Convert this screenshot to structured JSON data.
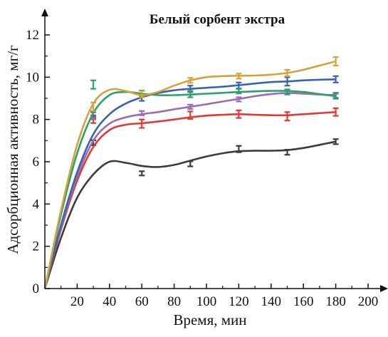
{
  "chart_data": {
    "type": "line",
    "title": "Белый сорбент экстра",
    "xlabel": "Время, мин",
    "ylabel": "Адсорбционная активность, мг/г",
    "xlim": [
      0,
      200
    ],
    "ylim": [
      0,
      12
    ],
    "x_ticks": [
      20,
      40,
      60,
      80,
      100,
      120,
      140,
      160,
      180,
      200
    ],
    "x_tick_labels": [
      "20",
      "40",
      "60",
      "80",
      "100",
      "120",
      "140",
      "160",
      "180",
      "200"
    ],
    "y_ticks": [
      0,
      2,
      4,
      6,
      8,
      10,
      12
    ],
    "y_tick_labels": [
      "0",
      "2",
      "4",
      "6",
      "8",
      "10",
      "12"
    ],
    "grid": false,
    "legend": "none",
    "series": [
      {
        "color": "#3c3c3c",
        "points": [
          [
            0,
            0
          ],
          [
            30,
            6.9
          ],
          [
            60,
            5.45
          ],
          [
            90,
            5.9
          ],
          [
            120,
            6.6
          ],
          [
            150,
            6.45
          ],
          [
            180,
            6.95
          ]
        ],
        "errors": [
          0.12,
          0.1,
          0.12,
          0.15,
          0.12,
          0.12
        ],
        "curve": [
          [
            0,
            0
          ],
          [
            10,
            2.4
          ],
          [
            20,
            4.3
          ],
          [
            30,
            5.4
          ],
          [
            40,
            6.0
          ],
          [
            50,
            5.95
          ],
          [
            60,
            5.8
          ],
          [
            70,
            5.75
          ],
          [
            80,
            5.85
          ],
          [
            90,
            6.05
          ],
          [
            100,
            6.25
          ],
          [
            110,
            6.4
          ],
          [
            120,
            6.5
          ],
          [
            130,
            6.52
          ],
          [
            140,
            6.52
          ],
          [
            150,
            6.55
          ],
          [
            160,
            6.65
          ],
          [
            170,
            6.8
          ],
          [
            180,
            6.95
          ]
        ]
      },
      {
        "color": "#e03a36",
        "points": [
          [
            0,
            0
          ],
          [
            30,
            7.95
          ],
          [
            60,
            7.8
          ],
          [
            90,
            8.2
          ],
          [
            120,
            8.25
          ],
          [
            150,
            8.15
          ],
          [
            180,
            8.35
          ]
        ],
        "errors": [
          0.12,
          0.2,
          0.18,
          0.18,
          0.2,
          0.18
        ],
        "curve": [
          [
            0,
            0
          ],
          [
            10,
            2.8
          ],
          [
            20,
            5.1
          ],
          [
            30,
            6.7
          ],
          [
            40,
            7.5
          ],
          [
            50,
            7.75
          ],
          [
            60,
            7.82
          ],
          [
            70,
            7.9
          ],
          [
            80,
            8.0
          ],
          [
            90,
            8.1
          ],
          [
            100,
            8.18
          ],
          [
            110,
            8.22
          ],
          [
            120,
            8.25
          ],
          [
            130,
            8.22
          ],
          [
            140,
            8.2
          ],
          [
            150,
            8.2
          ],
          [
            160,
            8.25
          ],
          [
            170,
            8.3
          ],
          [
            180,
            8.35
          ]
        ]
      },
      {
        "color": "#9b6bb8",
        "points": [
          [
            0,
            0
          ],
          [
            30,
            8.1
          ],
          [
            60,
            8.3
          ],
          [
            90,
            8.6
          ],
          [
            120,
            8.95
          ],
          [
            150,
            9.3
          ],
          [
            180,
            9.15
          ]
        ],
        "errors": [
          0.1,
          0.1,
          0.1,
          0.1,
          0.1,
          0.12
        ],
        "curve": [
          [
            0,
            0
          ],
          [
            10,
            2.9
          ],
          [
            20,
            5.3
          ],
          [
            30,
            7.0
          ],
          [
            40,
            7.8
          ],
          [
            50,
            8.1
          ],
          [
            60,
            8.25
          ],
          [
            70,
            8.35
          ],
          [
            80,
            8.48
          ],
          [
            90,
            8.6
          ],
          [
            100,
            8.72
          ],
          [
            110,
            8.85
          ],
          [
            120,
            8.97
          ],
          [
            130,
            9.1
          ],
          [
            140,
            9.2
          ],
          [
            150,
            9.25
          ],
          [
            160,
            9.22
          ],
          [
            170,
            9.18
          ],
          [
            180,
            9.15
          ]
        ]
      },
      {
        "color": "#3a62b0",
        "points": [
          [
            0,
            0
          ],
          [
            30,
            8.25
          ],
          [
            60,
            9.0
          ],
          [
            90,
            9.45
          ],
          [
            120,
            9.6
          ],
          [
            150,
            9.8
          ],
          [
            180,
            9.9
          ]
        ],
        "errors": [
          0.1,
          0.12,
          0.15,
          0.15,
          0.2,
          0.15
        ],
        "curve": [
          [
            0,
            0
          ],
          [
            10,
            3.0
          ],
          [
            20,
            5.5
          ],
          [
            30,
            7.3
          ],
          [
            40,
            8.25
          ],
          [
            50,
            8.75
          ],
          [
            60,
            9.05
          ],
          [
            70,
            9.25
          ],
          [
            80,
            9.38
          ],
          [
            90,
            9.45
          ],
          [
            100,
            9.5
          ],
          [
            110,
            9.55
          ],
          [
            120,
            9.62
          ],
          [
            130,
            9.7
          ],
          [
            140,
            9.77
          ],
          [
            150,
            9.8
          ],
          [
            160,
            9.85
          ],
          [
            170,
            9.88
          ],
          [
            180,
            9.9
          ]
        ]
      },
      {
        "color": "#2ea06a",
        "points": [
          [
            0,
            0
          ],
          [
            30,
            9.65
          ],
          [
            60,
            9.25
          ],
          [
            90,
            9.2
          ],
          [
            120,
            9.35
          ],
          [
            150,
            9.3
          ],
          [
            180,
            9.1
          ]
        ],
        "errors": [
          0.2,
          0.12,
          0.15,
          0.12,
          0.12,
          0.12
        ],
        "curve": [
          [
            0,
            0
          ],
          [
            10,
            3.5
          ],
          [
            20,
            6.4
          ],
          [
            30,
            8.3
          ],
          [
            40,
            9.15
          ],
          [
            50,
            9.3
          ],
          [
            60,
            9.22
          ],
          [
            70,
            9.15
          ],
          [
            80,
            9.15
          ],
          [
            90,
            9.18
          ],
          [
            100,
            9.22
          ],
          [
            110,
            9.26
          ],
          [
            120,
            9.3
          ],
          [
            130,
            9.33
          ],
          [
            140,
            9.35
          ],
          [
            150,
            9.35
          ],
          [
            160,
            9.3
          ],
          [
            170,
            9.2
          ],
          [
            180,
            9.1
          ]
        ]
      },
      {
        "color": "#d4a23c",
        "points": [
          [
            0,
            0
          ],
          [
            30,
            8.6
          ],
          [
            60,
            9.2
          ],
          [
            90,
            9.85
          ],
          [
            120,
            10.05
          ],
          [
            150,
            10.2
          ],
          [
            180,
            10.75
          ]
        ],
        "errors": [
          0.2,
          0.15,
          0.12,
          0.12,
          0.15,
          0.2
        ],
        "curve": [
          [
            0,
            0
          ],
          [
            10,
            3.7
          ],
          [
            20,
            6.8
          ],
          [
            30,
            8.75
          ],
          [
            40,
            9.4
          ],
          [
            50,
            9.35
          ],
          [
            60,
            9.15
          ],
          [
            70,
            9.3
          ],
          [
            80,
            9.6
          ],
          [
            90,
            9.85
          ],
          [
            100,
            10.0
          ],
          [
            110,
            10.05
          ],
          [
            120,
            10.07
          ],
          [
            130,
            10.08
          ],
          [
            140,
            10.12
          ],
          [
            150,
            10.2
          ],
          [
            160,
            10.35
          ],
          [
            170,
            10.55
          ],
          [
            180,
            10.75
          ]
        ]
      }
    ]
  }
}
